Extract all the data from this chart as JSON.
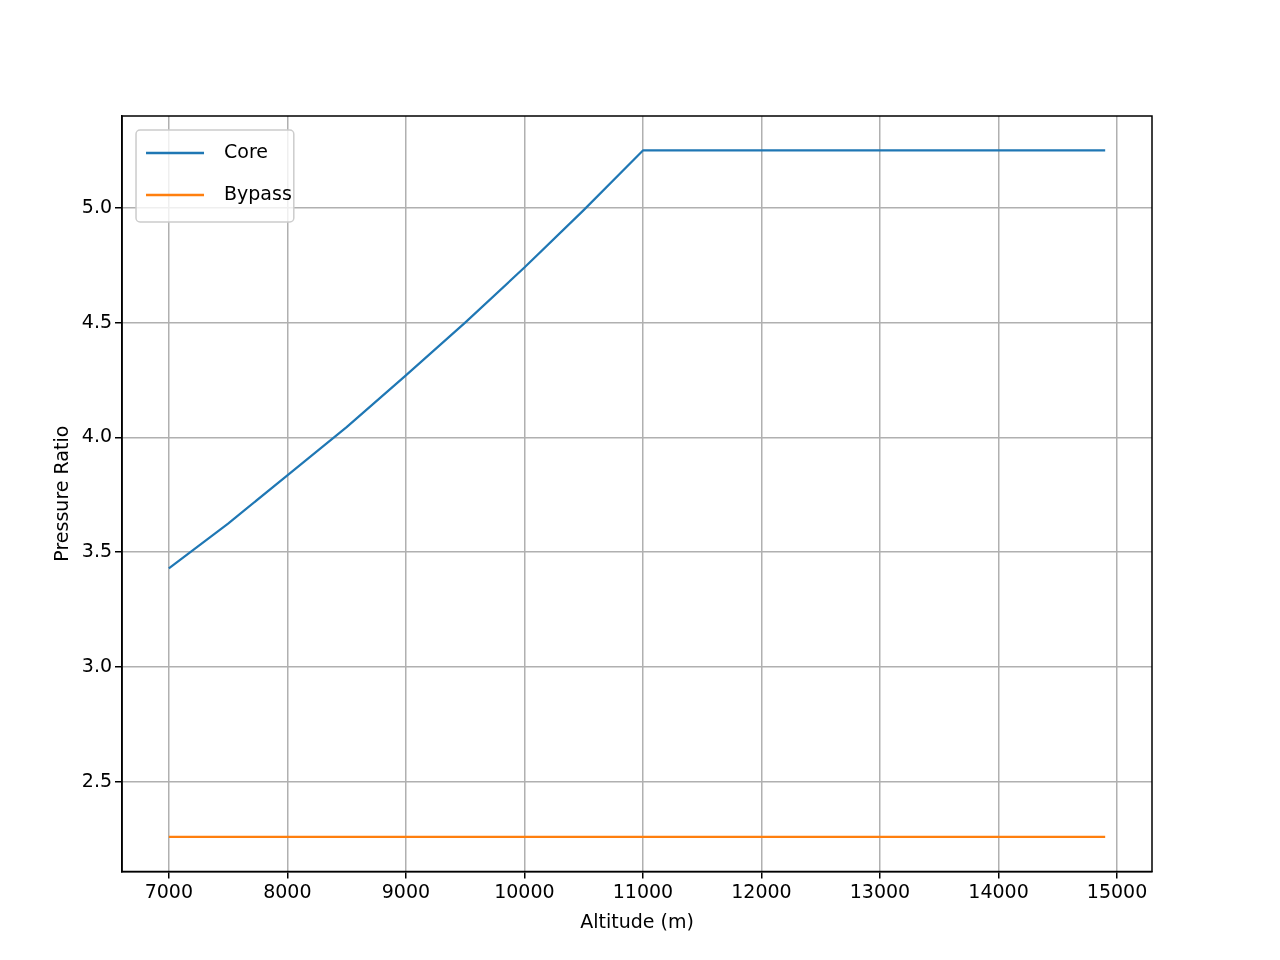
{
  "chart_data": {
    "type": "line",
    "xlabel": "Altitude (m)",
    "ylabel": "Pressure Ratio",
    "xlim": [
      6605,
      15295
    ],
    "ylim": [
      2.11,
      5.4
    ],
    "xticks": [
      7000,
      8000,
      9000,
      10000,
      11000,
      12000,
      13000,
      14000,
      15000
    ],
    "yticks": [
      {
        "value": 2.5,
        "label": "2.5"
      },
      {
        "value": 3.0,
        "label": "3.0"
      },
      {
        "value": 3.5,
        "label": "3.5"
      },
      {
        "value": 4.0,
        "label": "4.0"
      },
      {
        "value": 4.5,
        "label": "4.5"
      },
      {
        "value": 5.0,
        "label": "5.0"
      }
    ],
    "grid": true,
    "legend": "top left",
    "marker": "none",
    "line_style": "solid",
    "series": [
      {
        "name": "Core",
        "color": "#1f77b4",
        "x": [
          7000,
          7500,
          8000,
          8500,
          9000,
          9500,
          10000,
          10500,
          11000,
          12000,
          13000,
          14000,
          14900
        ],
        "values": [
          3.43,
          3.625,
          3.835,
          4.045,
          4.27,
          4.5,
          4.74,
          4.99,
          5.25,
          5.25,
          5.25,
          5.25,
          5.25
        ]
      },
      {
        "name": "Bypass",
        "color": "#ff7f0e",
        "x": [
          7000,
          14900
        ],
        "values": [
          2.26,
          2.26
        ]
      }
    ]
  }
}
